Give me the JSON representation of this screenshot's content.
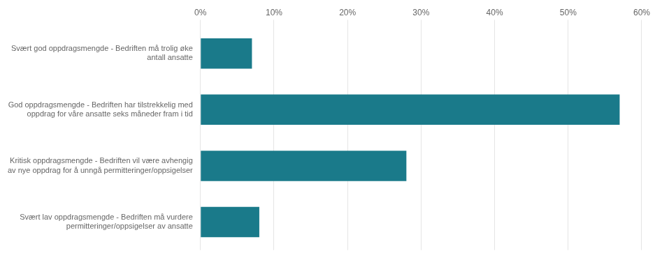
{
  "chart_data": {
    "type": "bar",
    "orientation": "horizontal",
    "categories": [
      "Svært god oppdragsmengde - Bedriften må trolig øke\nantall ansatte",
      "God oppdragsmengde - Bedriften har tilstrekkelig med\noppdrag for våre ansatte seks måneder fram i tid",
      "Kritisk oppdragsmengde - Bedriften vil være avhengig\nav nye oppdrag for å unngå permitteringer/oppsigelser",
      "Svært lav oppdragsmengde - Bedriften må vurdere\npermitteringer/oppsigelser av ansatte"
    ],
    "values": [
      0.07,
      0.57,
      0.28,
      0.08
    ],
    "color": "#1a7a8a",
    "xlim": [
      0.0,
      0.6
    ],
    "xticks": [
      {
        "value": 0.0,
        "label": "0%"
      },
      {
        "value": 0.1,
        "label": "10%"
      },
      {
        "value": 0.2,
        "label": "20%"
      },
      {
        "value": 0.3,
        "label": "30%"
      },
      {
        "value": 0.4,
        "label": "40%"
      },
      {
        "value": 0.5,
        "label": "50%"
      },
      {
        "value": 0.6,
        "label": "60%"
      }
    ],
    "grid": true
  }
}
